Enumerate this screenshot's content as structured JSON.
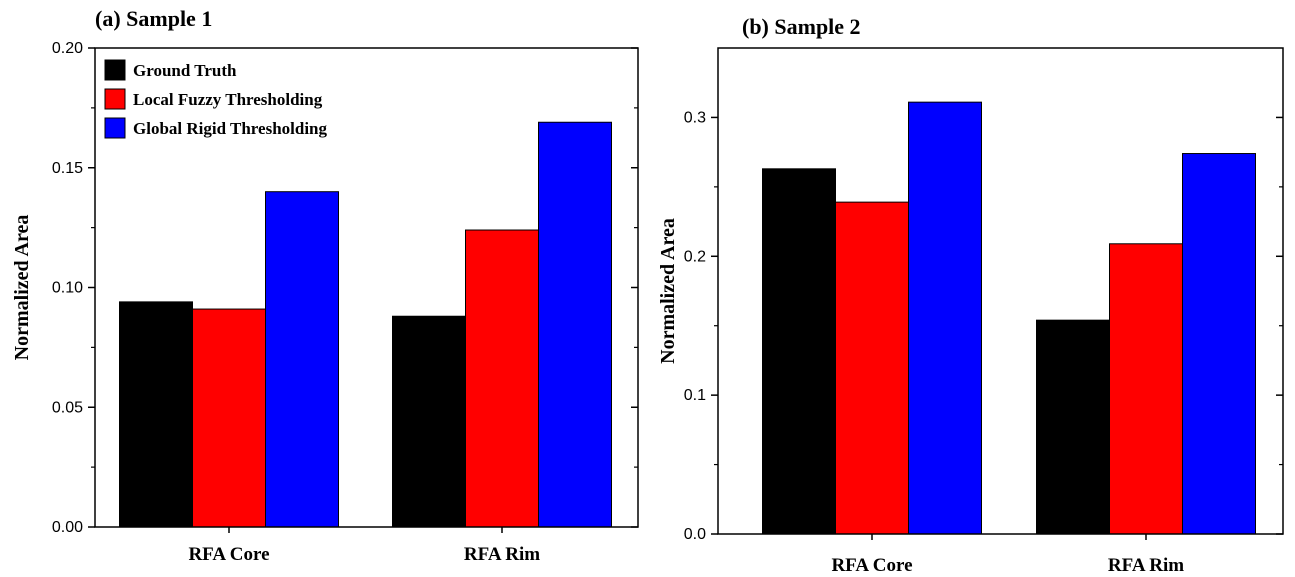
{
  "chart_data": [
    {
      "type": "bar",
      "title": "(a) Sample 1",
      "ylabel": "Normalized Area",
      "xlabel": "",
      "categories": [
        "RFA Core",
        "RFA Rim"
      ],
      "ylim": [
        0,
        0.2
      ],
      "yticks": [
        "0.00",
        "0.05",
        "0.10",
        "0.15",
        "0.20"
      ],
      "legend": "top-left",
      "series": [
        {
          "name": "Ground Truth",
          "color": "#000000",
          "values": [
            0.094,
            0.088
          ]
        },
        {
          "name": "Local Fuzzy Thresholding",
          "color": "#ff0000",
          "values": [
            0.091,
            0.124
          ]
        },
        {
          "name": "Global Rigid Thresholding",
          "color": "#0000ff",
          "values": [
            0.14,
            0.169
          ]
        }
      ]
    },
    {
      "type": "bar",
      "title": "(b) Sample 2",
      "ylabel": "Normalized Area",
      "xlabel": "",
      "categories": [
        "RFA Core",
        "RFA Rim"
      ],
      "ylim": [
        0,
        0.35
      ],
      "yticks": [
        "0.0",
        "0.1",
        "0.2",
        "0.3"
      ],
      "legend": "none",
      "series": [
        {
          "name": "Ground Truth",
          "color": "#000000",
          "values": [
            0.263,
            0.154
          ]
        },
        {
          "name": "Local Fuzzy Thresholding",
          "color": "#ff0000",
          "values": [
            0.239,
            0.209
          ]
        },
        {
          "name": "Global Rigid Thresholding",
          "color": "#0000ff",
          "values": [
            0.311,
            0.274
          ]
        }
      ]
    }
  ]
}
